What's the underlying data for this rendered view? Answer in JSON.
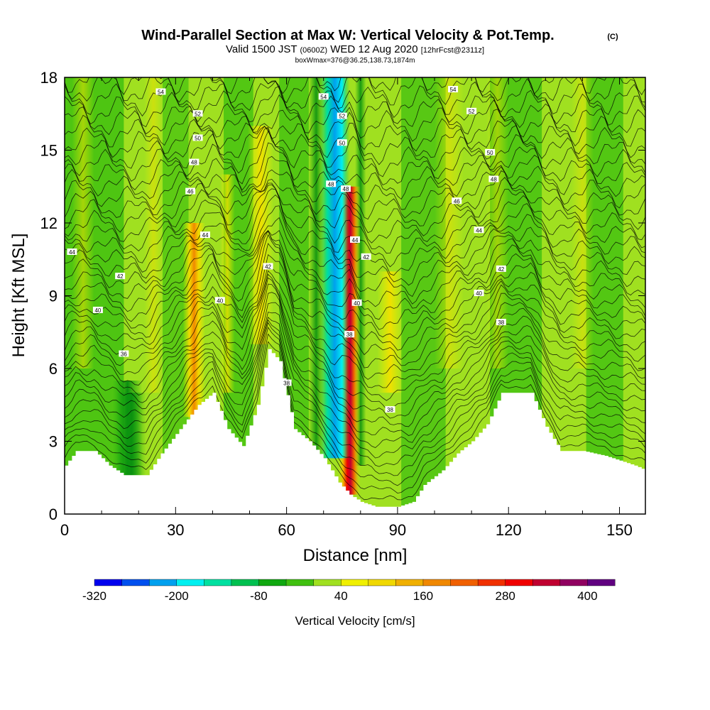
{
  "chart_data": {
    "type": "heatmap",
    "title": "Wind-Parallel Section at Max W: Vertical Velocity & Pot.Temp.",
    "title_mark": "(C)",
    "subtitle": {
      "a": "Valid 1500 JST",
      "b": "(0600Z)",
      "c": "WED 12 Aug 2020",
      "d": "[12hrFcst@2311z]"
    },
    "subtitle2": "boxWmax=376@36.25,138.73,1874m",
    "xlabel": "Distance [nm]",
    "ylabel": "Height [Kft MSL]",
    "xlim": [
      0,
      157
    ],
    "ylim": [
      0,
      18
    ],
    "x_ticks": [
      "0",
      "30",
      "60",
      "90",
      "120",
      "150"
    ],
    "y_ticks": [
      "0",
      "3",
      "6",
      "9",
      "12",
      "15",
      "18"
    ],
    "colorbar": {
      "label": "Vertical Velocity [cm/s]",
      "tick_labels": [
        "-320",
        "-200",
        "-80",
        "40",
        "160",
        "280",
        "400"
      ],
      "colors": [
        "#0000ee",
        "#0050ee",
        "#00a0ee",
        "#00f0f0",
        "#00e0a0",
        "#00c050",
        "#10a810",
        "#40c010",
        "#a0e020",
        "#f0f000",
        "#f0d800",
        "#f0b000",
        "#f08800",
        "#f06000",
        "#f03000",
        "#f00000",
        "#c00030",
        "#900060",
        "#600080"
      ]
    },
    "terrain_kft": [
      [
        0,
        2
      ],
      [
        3,
        2.6
      ],
      [
        8,
        2.6
      ],
      [
        12,
        2
      ],
      [
        16,
        1.6
      ],
      [
        22,
        1.6
      ],
      [
        26,
        2.5
      ],
      [
        31,
        3.5
      ],
      [
        36,
        4.5
      ],
      [
        40,
        5
      ],
      [
        44,
        3.5
      ],
      [
        48,
        2.8
      ],
      [
        52,
        4.5
      ],
      [
        55,
        6.8
      ],
      [
        58,
        6.3
      ],
      [
        62,
        3.5
      ],
      [
        66,
        3
      ],
      [
        70,
        2.3
      ],
      [
        74,
        1.3
      ],
      [
        77,
        0.8
      ],
      [
        80,
        0.5
      ],
      [
        84,
        0.3
      ],
      [
        90,
        0.3
      ],
      [
        94,
        0.5
      ],
      [
        97,
        1.2
      ],
      [
        102,
        1.8
      ],
      [
        106,
        2.5
      ],
      [
        110,
        3
      ],
      [
        114,
        3.7
      ],
      [
        118,
        5
      ],
      [
        126,
        5
      ],
      [
        130,
        3.6
      ],
      [
        134,
        2.6
      ],
      [
        140,
        2.6
      ],
      [
        146,
        2.4
      ],
      [
        150,
        2.2
      ],
      [
        154,
        2
      ],
      [
        157,
        1.8
      ]
    ],
    "shading_units": "cm/s",
    "contour_units": "C",
    "contour_levels": [
      "36",
      "38",
      "40",
      "42",
      "44",
      "46",
      "48",
      "50",
      "52",
      "54"
    ],
    "w_features": [
      {
        "x": 77,
        "z_bottom": 0.8,
        "z_top": 13.5,
        "w": 376
      },
      {
        "x": 73,
        "z_bottom": 2.3,
        "z_top": 18,
        "w": -250
      },
      {
        "x": 35,
        "z_bottom": 4,
        "z_top": 12,
        "w": 200
      },
      {
        "x": 53,
        "z_bottom": 7,
        "z_top": 16,
        "w": 120
      },
      {
        "x": 88,
        "z_bottom": 5,
        "z_top": 10,
        "w": 100
      },
      {
        "x": 18,
        "z_bottom": 1.6,
        "z_top": 5,
        "w": -100
      }
    ],
    "contour_labels": [
      {
        "text": "54",
        "x": 26,
        "z": 17.4
      },
      {
        "text": "52",
        "x": 36,
        "z": 16.5
      },
      {
        "text": "50",
        "x": 36,
        "z": 15.5
      },
      {
        "text": "48",
        "x": 35,
        "z": 14.5
      },
      {
        "text": "46",
        "x": 34,
        "z": 13.3
      },
      {
        "text": "44",
        "x": 38,
        "z": 11.5
      },
      {
        "text": "44",
        "x": 2,
        "z": 10.8
      },
      {
        "text": "42",
        "x": 15,
        "z": 9.8
      },
      {
        "text": "40",
        "x": 9,
        "z": 8.4
      },
      {
        "text": "36",
        "x": 16,
        "z": 6.6
      },
      {
        "text": "40",
        "x": 42,
        "z": 8.8
      },
      {
        "text": "42",
        "x": 55,
        "z": 10.2
      },
      {
        "text": "38",
        "x": 60,
        "z": 5.4
      },
      {
        "text": "54",
        "x": 70,
        "z": 17.2
      },
      {
        "text": "52",
        "x": 75,
        "z": 16.4
      },
      {
        "text": "50",
        "x": 75,
        "z": 15.3
      },
      {
        "text": "48",
        "x": 72,
        "z": 13.6
      },
      {
        "text": "48",
        "x": 76,
        "z": 13.4
      },
      {
        "text": "44",
        "x": 78.5,
        "z": 11.3
      },
      {
        "text": "42",
        "x": 81.5,
        "z": 10.6
      },
      {
        "text": "40",
        "x": 79,
        "z": 8.7
      },
      {
        "text": "38",
        "x": 77,
        "z": 7.4
      },
      {
        "text": "38",
        "x": 88,
        "z": 4.3
      },
      {
        "text": "54",
        "x": 105,
        "z": 17.5
      },
      {
        "text": "52",
        "x": 110,
        "z": 16.6
      },
      {
        "text": "50",
        "x": 115,
        "z": 14.9
      },
      {
        "text": "48",
        "x": 116,
        "z": 13.8
      },
      {
        "text": "46",
        "x": 106,
        "z": 12.9
      },
      {
        "text": "44",
        "x": 112,
        "z": 11.7
      },
      {
        "text": "42",
        "x": 118,
        "z": 10.1
      },
      {
        "text": "40",
        "x": 112,
        "z": 9.1
      },
      {
        "text": "38",
        "x": 118,
        "z": 7.9
      }
    ]
  }
}
